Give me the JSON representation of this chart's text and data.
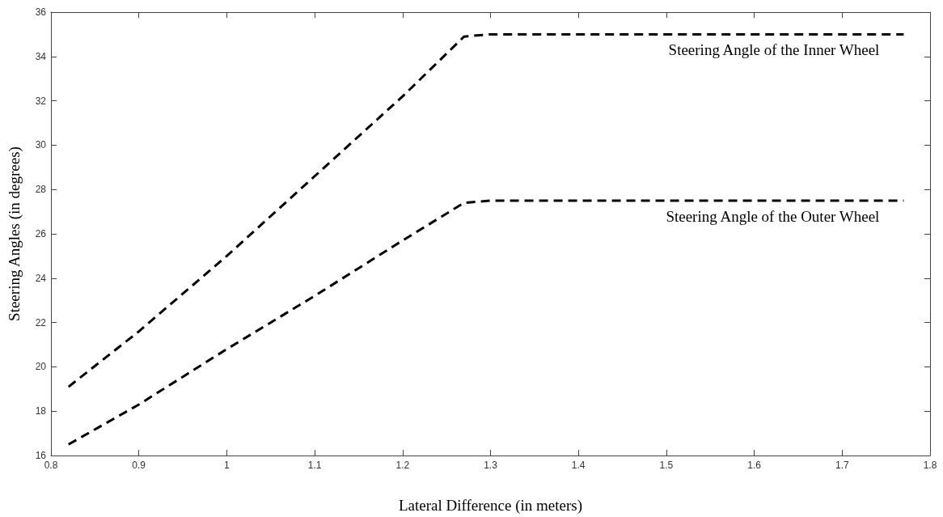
{
  "chart_data": {
    "type": "line",
    "xlabel": "Lateral Difference (in meters)",
    "ylabel": "Steering Angles (in degrees)",
    "series": [
      {
        "name": "Steering Angle of the Inner Wheel",
        "color": "#000000",
        "x": [
          0.82,
          0.9,
          1.0,
          1.1,
          1.2,
          1.27,
          1.3,
          1.77
        ],
        "values": [
          19.1,
          21.6,
          25.0,
          28.6,
          32.2,
          34.9,
          35.0,
          35.0
        ]
      },
      {
        "name": "Steering Angle of the Outer Wheel",
        "color": "#000000",
        "x": [
          0.82,
          0.9,
          1.0,
          1.1,
          1.2,
          1.27,
          1.3,
          1.77
        ],
        "values": [
          16.5,
          18.3,
          20.8,
          23.2,
          25.7,
          27.4,
          27.5,
          27.5
        ]
      }
    ],
    "xlim": [
      0.8,
      1.8
    ],
    "xticks": [
      0.8,
      0.9,
      1,
      1.1,
      1.2,
      1.3,
      1.4,
      1.5,
      1.6,
      1.7,
      1.8
    ],
    "ylim": [
      16,
      36
    ],
    "yticks": [
      16,
      18,
      20,
      22,
      24,
      26,
      28,
      30,
      32,
      34,
      36
    ],
    "grid": false,
    "legend": false,
    "line_style": "dashed",
    "marker": "none"
  }
}
